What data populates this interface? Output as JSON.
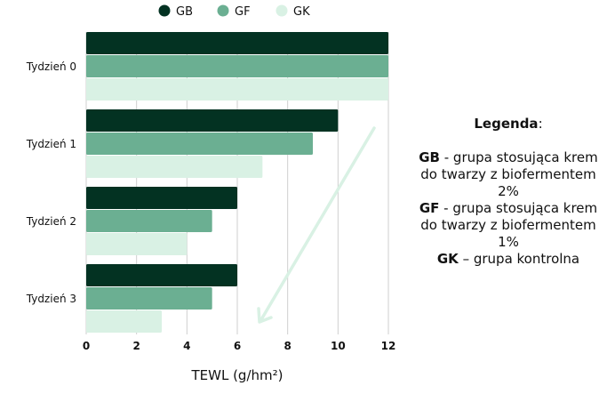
{
  "chart_data": {
    "type": "bar",
    "orientation": "horizontal",
    "categories": [
      "Tydzień 0",
      "Tydzień 1",
      "Tydzień 2",
      "Tydzień 3"
    ],
    "series": [
      {
        "name": "GB",
        "color": "#033222",
        "values": [
          12,
          10,
          6,
          6
        ]
      },
      {
        "name": "GF",
        "color": "#6baf92",
        "values": [
          12,
          9,
          5,
          5
        ]
      },
      {
        "name": "GK",
        "color": "#d9f1e4",
        "values": [
          12,
          7,
          4,
          3
        ]
      }
    ],
    "xlabel": "TEWL (g/hm²)",
    "ylabel": "",
    "xlim": [
      0,
      12
    ],
    "xticks": [
      "0",
      "2",
      "4",
      "6",
      "8",
      "10",
      "12"
    ],
    "grid": true,
    "legend_position": "top-center",
    "trend_arrow": "decreasing"
  },
  "side_legend": {
    "title": "Legenda",
    "title_suffix": ":",
    "entries": [
      {
        "code": "GB",
        "text": " - grupa stosująca krem do twarzy z biofermentem 2%"
      },
      {
        "code": "GF",
        "text": " - grupa stosująca krem do twarzy z biofermentem 1%"
      },
      {
        "code": "GK",
        "text": " – grupa kontrolna"
      }
    ]
  }
}
